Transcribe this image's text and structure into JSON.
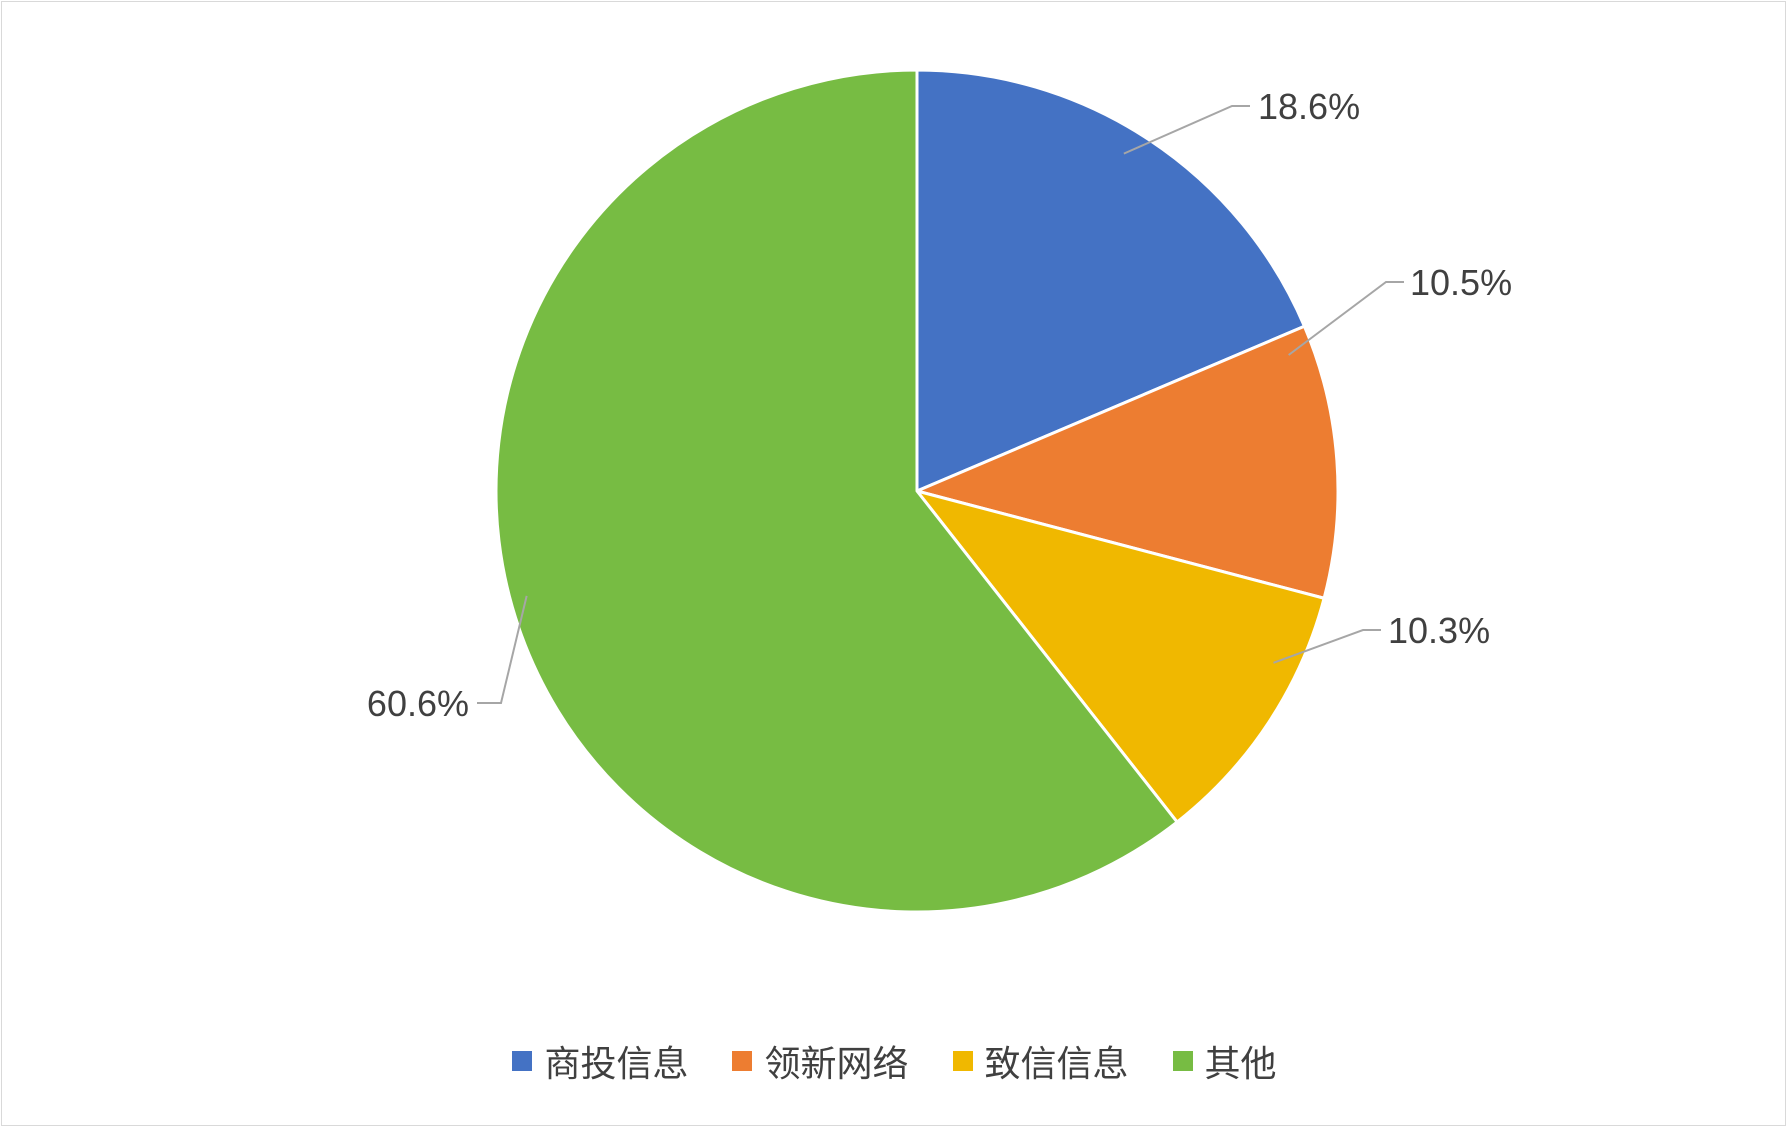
{
  "chart_data": {
    "type": "pie",
    "title": "",
    "categories": [
      "商投信息",
      "领新网络",
      "致信信息",
      "其他"
    ],
    "values": [
      18.6,
      10.5,
      10.3,
      60.6
    ],
    "data_labels": [
      "18.6%",
      "10.5%",
      "10.3%",
      "60.6%"
    ],
    "colors": [
      "#4472C4",
      "#ED7D31",
      "#F0B800",
      "#77BC43"
    ],
    "legend_position": "bottom",
    "start_angle": "12 o'clock, clockwise"
  },
  "legend": {
    "items": [
      {
        "label": "商投信息",
        "color": "#4472C4"
      },
      {
        "label": "领新网络",
        "color": "#ED7D31"
      },
      {
        "label": "致信信息",
        "color": "#F0B800"
      },
      {
        "label": "其他",
        "color": "#77BC43"
      }
    ]
  }
}
